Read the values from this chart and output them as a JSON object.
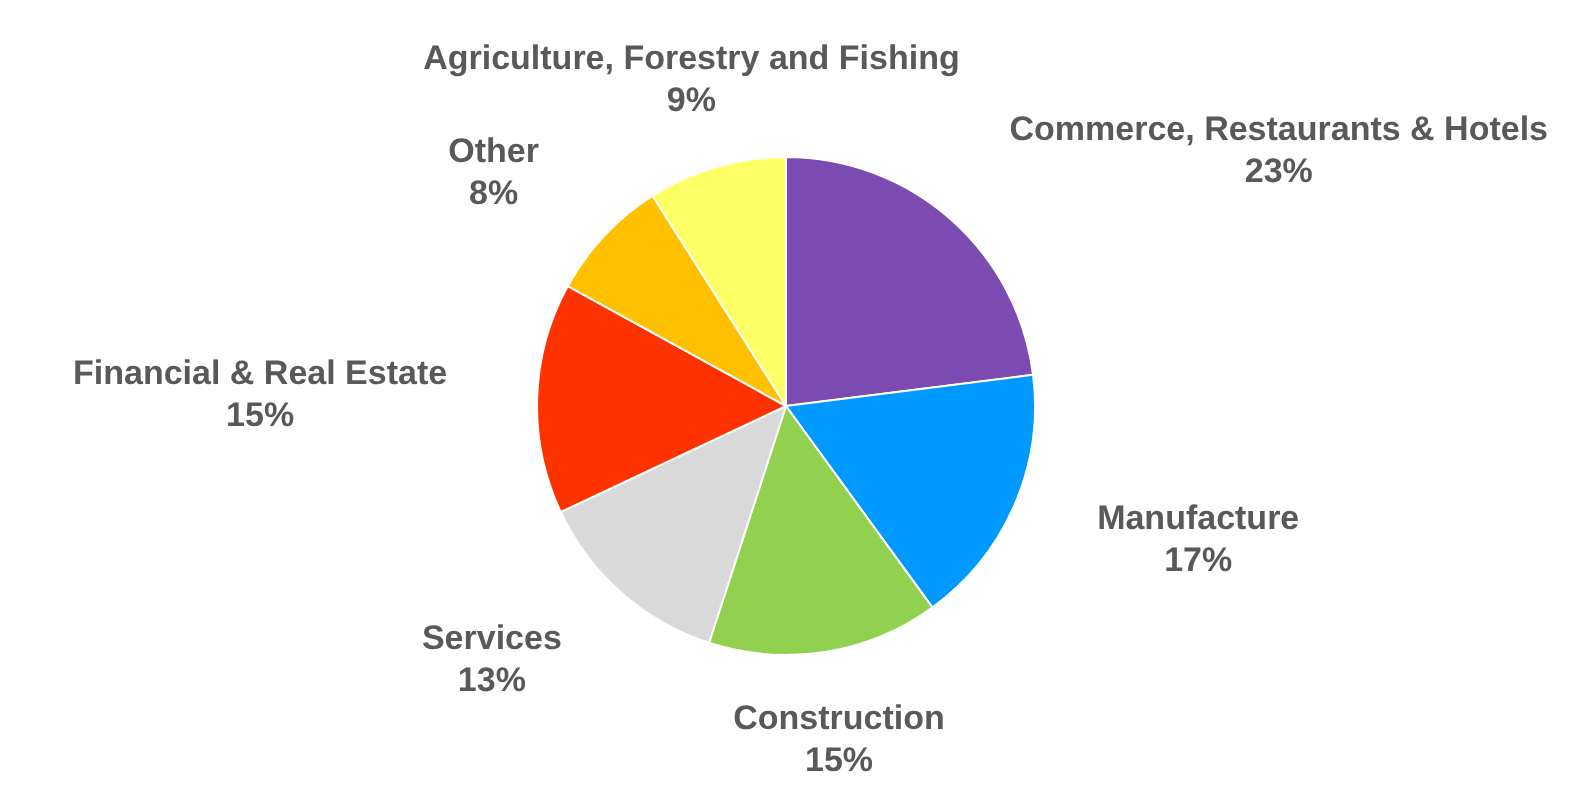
{
  "chart_data": {
    "type": "pie",
    "categories": [
      "Commerce, Restaurants & Hotels",
      "Manufacture",
      "Construction",
      "Services",
      "Financial & Real Estate",
      "Other",
      "Agriculture, Forestry and Fishing"
    ],
    "values": [
      23,
      17,
      15,
      13,
      15,
      8,
      9
    ],
    "value_labels": [
      "23%",
      "17%",
      "15%",
      "13%",
      "15%",
      "8%",
      "9%"
    ],
    "colors": [
      "#7b4bb2",
      "#0099ff",
      "#92d050",
      "#d9d9d9",
      "#ff3300",
      "#ffc000",
      "#ffff66"
    ],
    "legend": false
  }
}
